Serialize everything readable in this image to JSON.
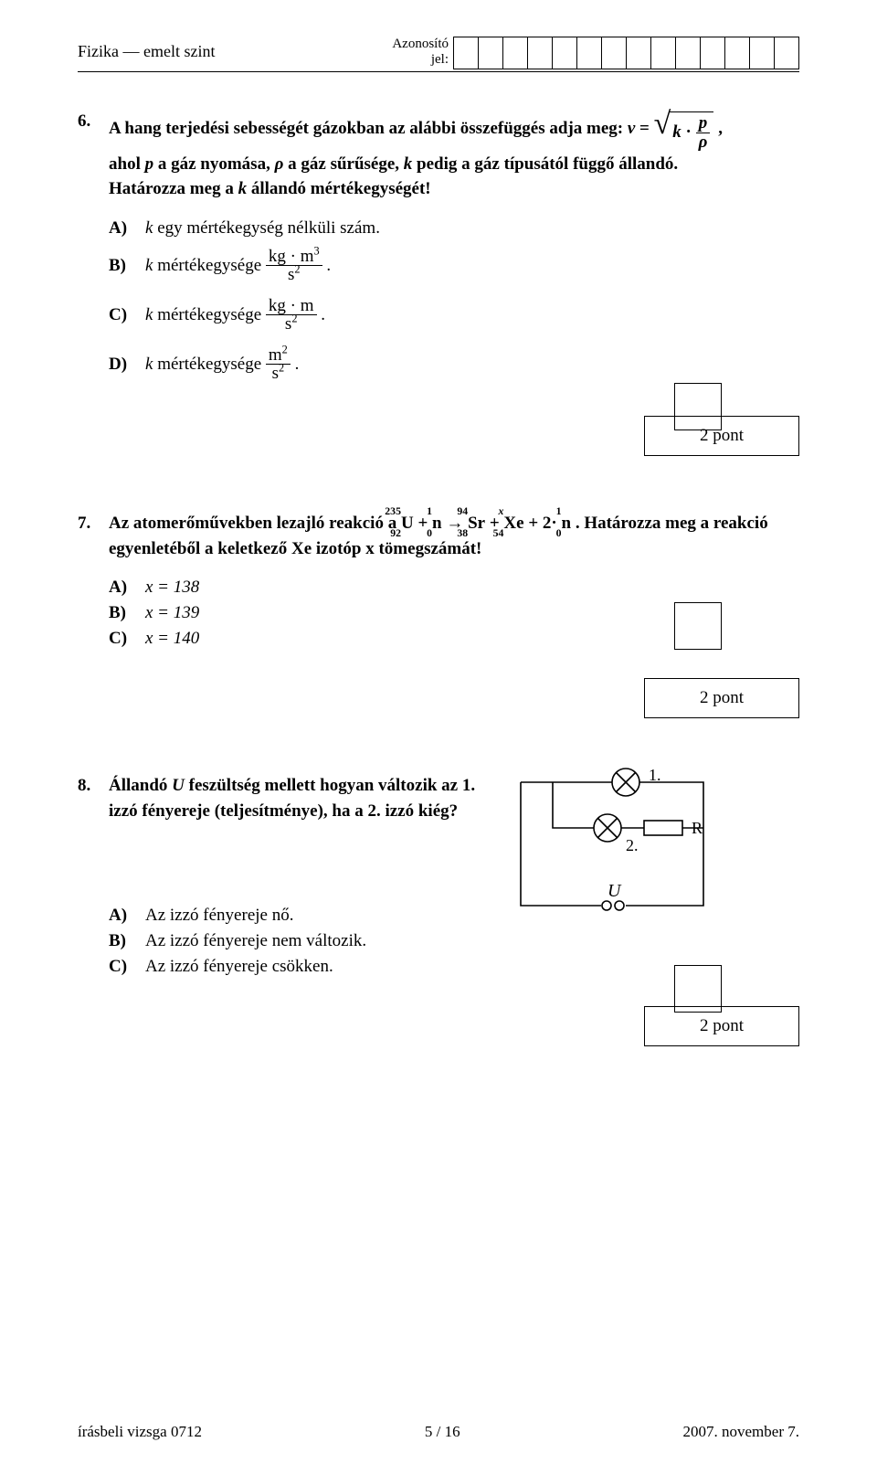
{
  "header": {
    "subject": "Fizika — emelt szint",
    "id_label_line1": "Azonosító",
    "id_label_line2": "jel:",
    "id_cell_count": 14
  },
  "q6": {
    "number": "6.",
    "stem_part1": "A hang terjedési sebességét gázokban az alábbi összefüggés adja meg: ",
    "stem_part2": ",",
    "stem_line2": "ahol ",
    "stem_line2b": " a gáz nyomása, ",
    "stem_line2c": " a gáz sűrűsége, ",
    "stem_line2d": " pedig a gáz típusától függő állandó.",
    "stem_line3a": "Határozza meg a ",
    "stem_line3b": " állandó mértékegységét!",
    "var_v": "v",
    "var_k": "k",
    "var_p": "p",
    "var_rho": "ρ",
    "A_label": "A)",
    "A_text_pre": "k",
    "A_text": " egy mértékegység nélküli szám.",
    "B_label": "B)",
    "B_text_pre": "k",
    "B_text": " mértékegysége ",
    "B_unit_num": "kg · m",
    "B_unit_num_exp": "3",
    "B_unit_den": "s",
    "B_unit_den_exp": "2",
    "C_label": "C)",
    "C_text_pre": "k",
    "C_text": " mértékegysége ",
    "C_unit_num": "kg · m",
    "C_unit_den": "s",
    "C_unit_den_exp": "2",
    "D_label": "D)",
    "D_text_pre": "k",
    "D_text": " mértékegysége ",
    "D_unit_num": "m",
    "D_unit_num_exp": "2",
    "D_unit_den": "s",
    "D_unit_den_exp": "2",
    "points": "2 pont"
  },
  "q7": {
    "number": "7.",
    "stem_a": "Az atomerőművekben lezajló reakció a ",
    "stem_b": ". Határozza meg a reakció egyenletéből a keletkező Xe izotóp x tömegszámát!",
    "U_top": "235",
    "U_bot": "92",
    "U": "U",
    "plus1": " + ",
    "n1_top": "1",
    "n1_bot": "0",
    "n1": "n",
    "arrow": " → ",
    "Sr_top": "94",
    "Sr_bot": "38",
    "Sr": "Sr",
    "plus2": " + ",
    "Xe_top": "x",
    "Xe_bot": "54",
    "Xe": "Xe",
    "plus3": " + 2·",
    "n2_top": "1",
    "n2_bot": "0",
    "n2": "n",
    "A_label": "A)",
    "A_text": "x = 138",
    "B_label": "B)",
    "B_text": "x = 139",
    "C_label": "C)",
    "C_text": "x = 140",
    "points": "2 pont"
  },
  "q8": {
    "number": "8.",
    "stem_a": "Állandó ",
    "stem_var": "U",
    "stem_b": " feszültség mellett hogyan változik az 1. izzó fényereje (teljesítménye), ha a 2. izzó kiég?",
    "A_label": "A)",
    "A_text": "Az izzó fényereje nő.",
    "B_label": "B)",
    "B_text": "Az izzó fényereje nem változik.",
    "C_label": "C)",
    "C_text": "Az izzó fényereje csökken.",
    "points": "2 pont",
    "circuit": {
      "label1": "1.",
      "label2": "2.",
      "labelR": "R",
      "labelU": "U",
      "stroke": "#000000",
      "stroke_width": 1.6
    }
  },
  "footer": {
    "left": "írásbeli vizsga 0712",
    "center": "5 / 16",
    "right": "2007. november 7."
  }
}
